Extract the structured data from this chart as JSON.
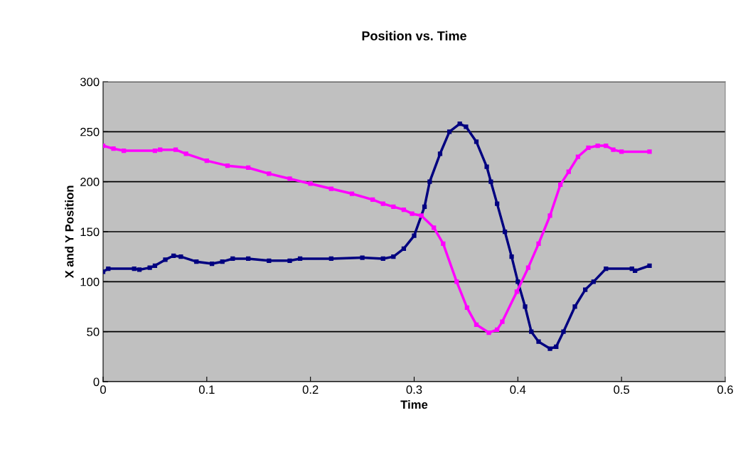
{
  "chart_data": {
    "type": "line",
    "title": "Position vs. Time",
    "xlabel": "Time",
    "ylabel": "X and Y Position",
    "xlim": [
      0,
      0.6
    ],
    "xticks": [
      0,
      0.1,
      0.2,
      0.3,
      0.4,
      0.5,
      0.6
    ],
    "ylim": [
      0,
      300
    ],
    "yticks": [
      0,
      50,
      100,
      150,
      200,
      250,
      300
    ],
    "grid": "y",
    "marker": "square",
    "line_style": "solid",
    "series": [
      {
        "color": "#000080",
        "x": [
          0,
          0.005,
          0.03,
          0.035,
          0.045,
          0.05,
          0.06,
          0.068,
          0.075,
          0.09,
          0.105,
          0.115,
          0.125,
          0.14,
          0.16,
          0.18,
          0.19,
          0.22,
          0.25,
          0.27,
          0.28,
          0.29,
          0.3,
          0.31,
          0.315,
          0.325,
          0.334,
          0.344,
          0.35,
          0.36,
          0.37,
          0.374,
          0.38,
          0.3875,
          0.394,
          0.4,
          0.407,
          0.413,
          0.42,
          0.431,
          0.437,
          0.444,
          0.455,
          0.465,
          0.473,
          0.485,
          0.51,
          0.513,
          0.527
        ],
        "values": [
          110,
          113,
          113,
          112,
          114,
          116,
          122,
          126,
          125,
          120,
          118,
          120,
          123,
          123,
          121,
          121,
          123,
          123,
          124,
          123,
          125,
          133,
          146,
          175,
          200,
          228,
          250,
          258,
          255,
          240,
          215,
          200,
          178,
          150,
          125,
          100,
          75,
          50,
          40,
          33,
          35,
          50,
          75,
          92,
          100,
          113,
          113,
          111,
          116
        ]
      },
      {
        "color": "#ff00ff",
        "x": [
          0,
          0.01,
          0.02,
          0.05,
          0.055,
          0.07,
          0.08,
          0.1,
          0.12,
          0.14,
          0.16,
          0.18,
          0.2,
          0.22,
          0.24,
          0.26,
          0.27,
          0.28,
          0.29,
          0.298,
          0.307,
          0.319,
          0.328,
          0.341,
          0.351,
          0.36,
          0.372,
          0.38,
          0.385,
          0.399,
          0.41,
          0.42,
          0.431,
          0.441,
          0.449,
          0.458,
          0.468,
          0.477,
          0.485,
          0.492,
          0.5,
          0.527
        ],
        "values": [
          236,
          233,
          231,
          231,
          232,
          232,
          228,
          221,
          216,
          214,
          208,
          203,
          198,
          193,
          188,
          182,
          178,
          175,
          172,
          168,
          166,
          154,
          138,
          100,
          74,
          57,
          49,
          52,
          60,
          90,
          114,
          138,
          166,
          197,
          210,
          225,
          234,
          236,
          236,
          232,
          230,
          230
        ]
      }
    ]
  }
}
